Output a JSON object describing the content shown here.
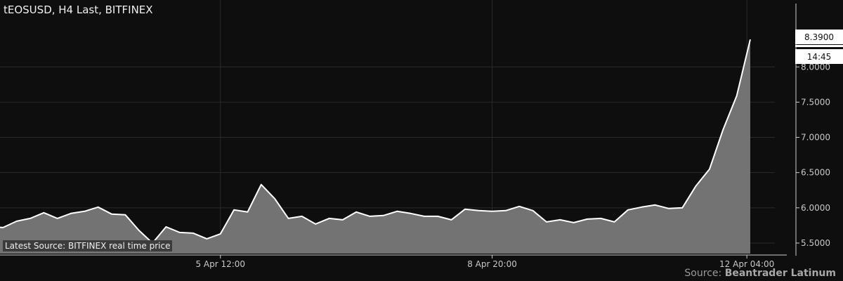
{
  "chart_data": {
    "type": "area",
    "title": "tEOSUSD, H4 Last, BITFINEX",
    "source_badge": "Latest Source: BITFINEX real time price",
    "source_prefix": "Source:",
    "source_name": "Beantrader Latinum",
    "last_price_label": "8.3900",
    "last_time_label": "14:45",
    "ylim": [
      5.35,
      8.9
    ],
    "y_ticks": [
      5.5,
      6.0,
      6.5,
      7.0,
      7.5,
      8.0
    ],
    "y_tick_labels": [
      "5.5000",
      "6.0000",
      "6.5000",
      "7.0000",
      "7.5000",
      "8.0000"
    ],
    "x_tick_labels": [
      "5 Apr 12:00",
      "8 Apr 20:00",
      "12 Apr 04:00"
    ],
    "x_tick_index": [
      17,
      37,
      55.75
    ],
    "values": [
      5.73,
      5.72,
      5.81,
      5.85,
      5.93,
      5.85,
      5.92,
      5.95,
      6.01,
      5.91,
      5.9,
      5.68,
      5.5,
      5.73,
      5.65,
      5.64,
      5.56,
      5.63,
      5.97,
      5.94,
      6.33,
      6.13,
      5.85,
      5.88,
      5.77,
      5.85,
      5.83,
      5.94,
      5.88,
      5.89,
      5.95,
      5.92,
      5.88,
      5.88,
      5.83,
      5.98,
      5.96,
      5.95,
      5.96,
      6.02,
      5.96,
      5.8,
      5.83,
      5.79,
      5.84,
      5.85,
      5.8,
      5.97,
      6.01,
      6.04,
      5.99,
      6.0,
      6.31,
      6.55,
      7.11,
      7.59,
      8.39
    ],
    "grid": true,
    "colors": {
      "background": "#0e0e0e",
      "area": "#737373",
      "line": "#ffffff",
      "grid": "#2a2a2a"
    }
  }
}
